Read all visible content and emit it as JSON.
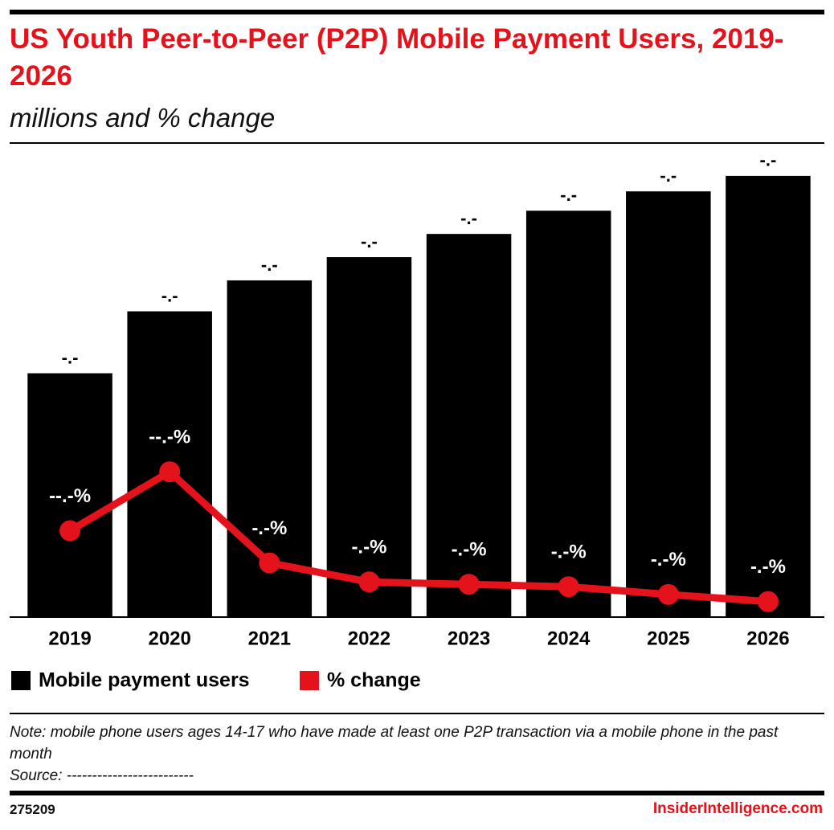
{
  "chart_data": {
    "type": "bar",
    "title": "US Youth Peer-to-Peer (P2P) Mobile Payment Users, 2019-2026",
    "subtitle": "millions and % change",
    "categories": [
      "2019",
      "2020",
      "2021",
      "2022",
      "2023",
      "2024",
      "2025",
      "2026"
    ],
    "series": [
      {
        "name": "Mobile payment users",
        "type": "bar",
        "color": "#000000",
        "values": [
          6.3,
          7.9,
          8.7,
          9.3,
          9.9,
          10.5,
          11.0,
          11.4
        ],
        "value_labels": [
          "-.-",
          "-.-",
          "-.-",
          "-.-",
          "-.-",
          "-.-",
          "-.-",
          "-.-"
        ]
      },
      {
        "name": "% change",
        "type": "line",
        "axis": "y2",
        "color": "#e3121b",
        "values": [
          15.5,
          25.4,
          10.1,
          6.9,
          6.5,
          6.1,
          4.8,
          3.6
        ],
        "value_labels": [
          "--.-%",
          "--.-%",
          "-.-%",
          "-.-%",
          "-.-%",
          "-.-%",
          "-.-%",
          "-.-%"
        ]
      }
    ],
    "ylim": [
      0,
      12
    ],
    "y2lim": [
      1,
      79
    ],
    "note": "Note: mobile phone users ages 14-17 who have made at least one P2P transaction via a mobile phone in the past month",
    "source": "Source: -------------------------",
    "chart_id": "275209",
    "brand": "InsiderIntelligence.com"
  }
}
